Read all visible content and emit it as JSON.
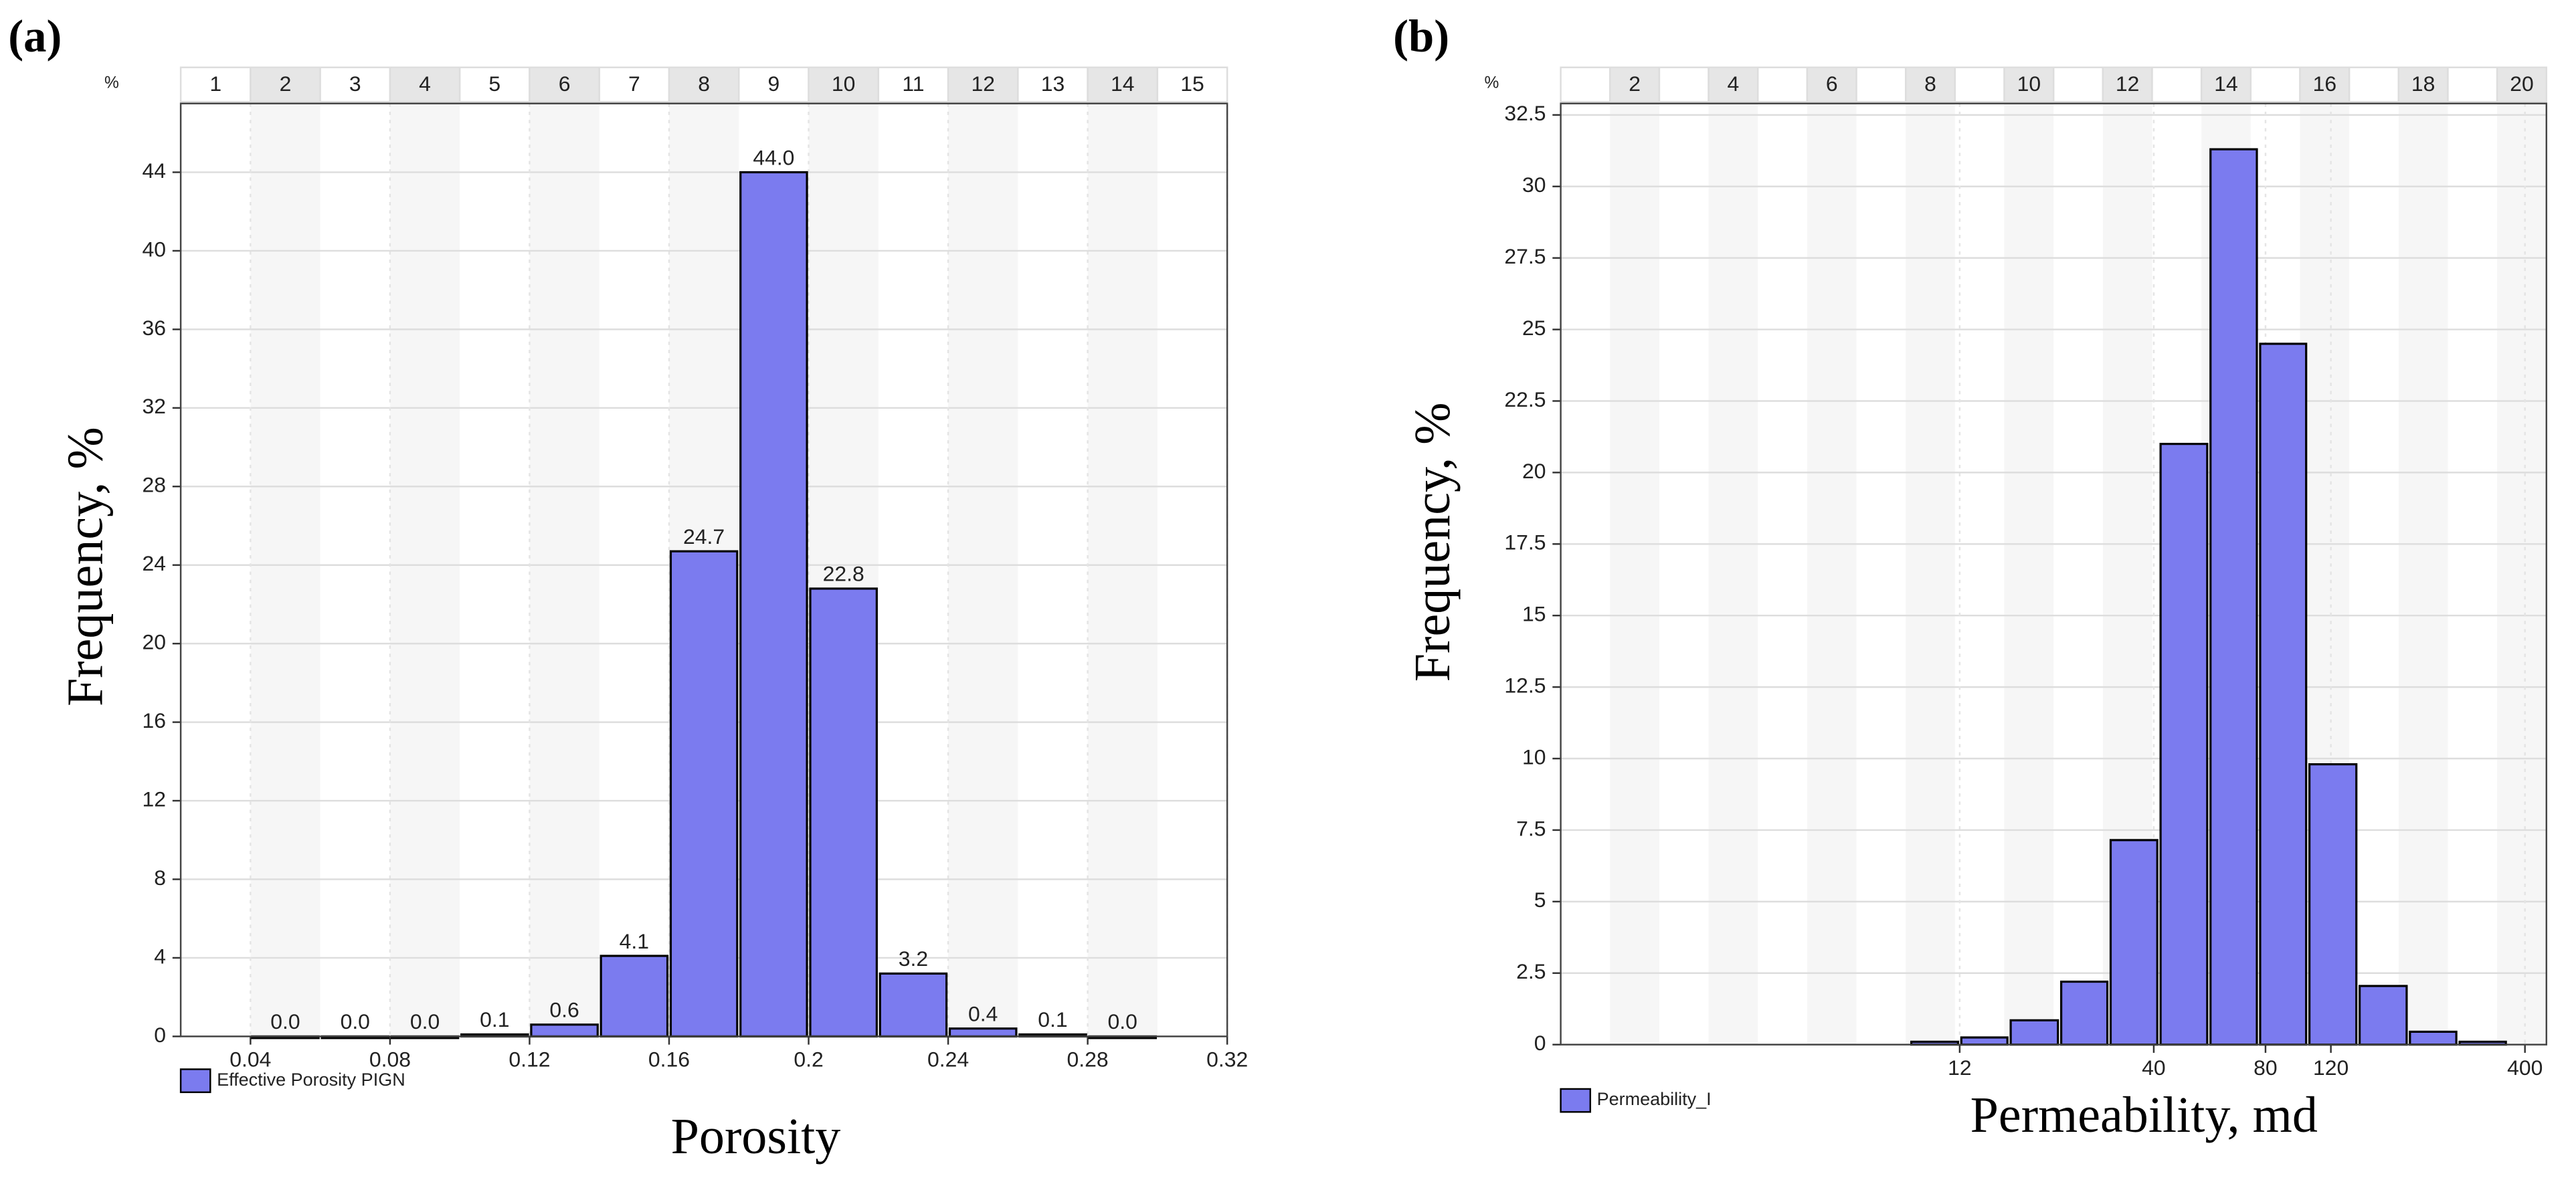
{
  "chart_data": [
    {
      "type": "histogram",
      "panel_label": "(a)",
      "y_unit": "%",
      "xlabel": "Porosity",
      "ylabel": "Frequency, %",
      "legend": "Effective Porosity PIGN",
      "color": "#7b7bef",
      "top_labels": [
        1,
        2,
        3,
        4,
        5,
        6,
        7,
        8,
        9,
        10,
        11,
        12,
        13,
        14,
        15
      ],
      "bins": [
        0.04,
        0.06,
        0.08,
        0.1,
        0.12,
        0.14,
        0.16,
        0.18,
        0.2,
        0.22,
        0.24,
        0.26,
        0.28,
        0.3
      ],
      "values": [
        0,
        0,
        0,
        0.1,
        0.6,
        4.1,
        24.7,
        44,
        22.8,
        3.2,
        0.4,
        0.1,
        0
      ],
      "value_labels": [
        "0.0",
        "0.0",
        "0.0",
        "0.1",
        "0.6",
        "4.1",
        "24.7",
        "44.0",
        "22.8",
        "3.2",
        "0.4",
        "0.1",
        "0.0"
      ],
      "xlim": [
        0.02,
        0.32
      ],
      "xticks": [
        0.04,
        0.08,
        0.12,
        0.16,
        0.2,
        0.24,
        0.28,
        0.32
      ],
      "ylim": [
        0,
        47.5
      ],
      "yticks": [
        0,
        4,
        8,
        12,
        16,
        20,
        24,
        28,
        32,
        36,
        40,
        44
      ],
      "grid": true,
      "log_x": false
    },
    {
      "type": "histogram",
      "panel_label": "(b)",
      "y_unit": "%",
      "xlabel": "Permeability, md",
      "ylabel": "Frequency, %",
      "legend": "Permeability_I",
      "color": "#7b7bef",
      "top_labels": [
        null,
        2,
        null,
        4,
        null,
        6,
        null,
        8,
        null,
        10,
        null,
        12,
        null,
        14,
        null,
        16,
        null,
        18,
        null,
        20
      ],
      "bins": [
        8.8,
        12,
        16.3,
        22.3,
        30.3,
        41.3,
        56.3,
        76.6,
        104,
        142,
        194,
        264,
        359
      ],
      "values": [
        0.1,
        0.25,
        0.85,
        2.2,
        7.15,
        21,
        31.3,
        24.5,
        9.8,
        2.05,
        0.45,
        0.1
      ],
      "xlim": [
        1.01,
        457
      ],
      "xticks": [
        12,
        40,
        80,
        120,
        400
      ],
      "ylim": [
        0,
        32.9
      ],
      "yticks": [
        0,
        2.5,
        5,
        7.5,
        10,
        12.5,
        15,
        17.5,
        20,
        22.5,
        25,
        27.5,
        30,
        32.5
      ],
      "grid": true,
      "log_x": true
    }
  ]
}
